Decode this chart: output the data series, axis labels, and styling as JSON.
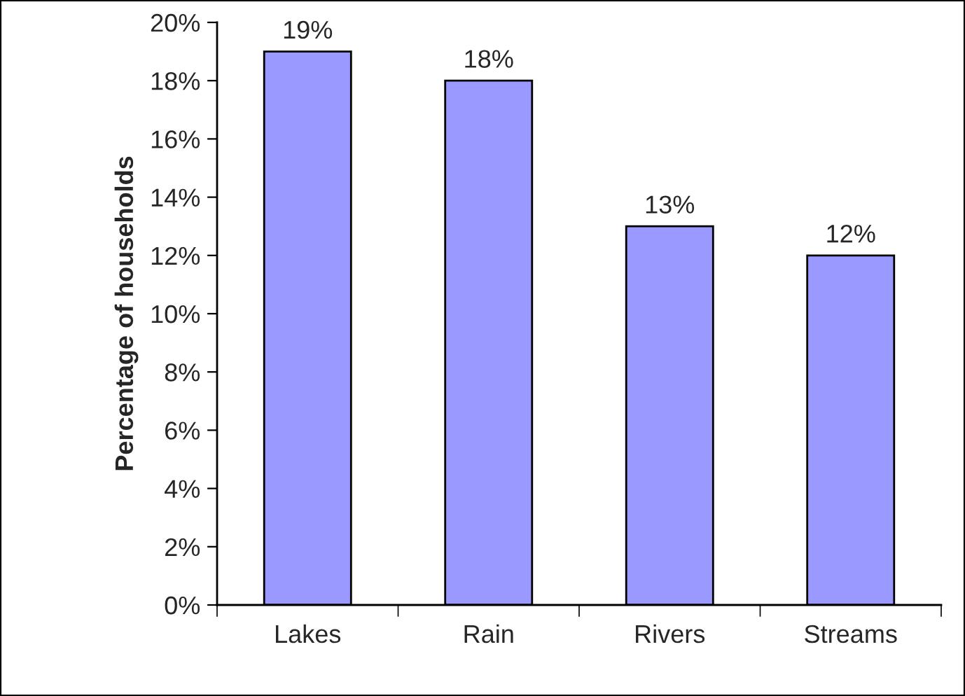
{
  "chart_data": {
    "type": "bar",
    "ylabel": "Percentage of households",
    "categories": [
      "Lakes",
      "Rain",
      "Rivers",
      "Streams"
    ],
    "values": [
      19,
      18,
      13,
      12
    ],
    "color": "#9999ff",
    "value_labels": [
      "19%",
      "18%",
      "13%",
      "12%"
    ],
    "ylim": [
      0,
      20
    ],
    "yticks": [
      {
        "value": 0,
        "label": "0%"
      },
      {
        "value": 2,
        "label": "2%"
      },
      {
        "value": 4,
        "label": "4%"
      },
      {
        "value": 6,
        "label": "6%"
      },
      {
        "value": 8,
        "label": "8%"
      },
      {
        "value": 10,
        "label": "10%"
      },
      {
        "value": 12,
        "label": "12%"
      },
      {
        "value": 14,
        "label": "14%"
      },
      {
        "value": 16,
        "label": "16%"
      },
      {
        "value": 18,
        "label": "18%"
      },
      {
        "value": 20,
        "label": "20%"
      }
    ],
    "grid": false,
    "legend": false
  }
}
